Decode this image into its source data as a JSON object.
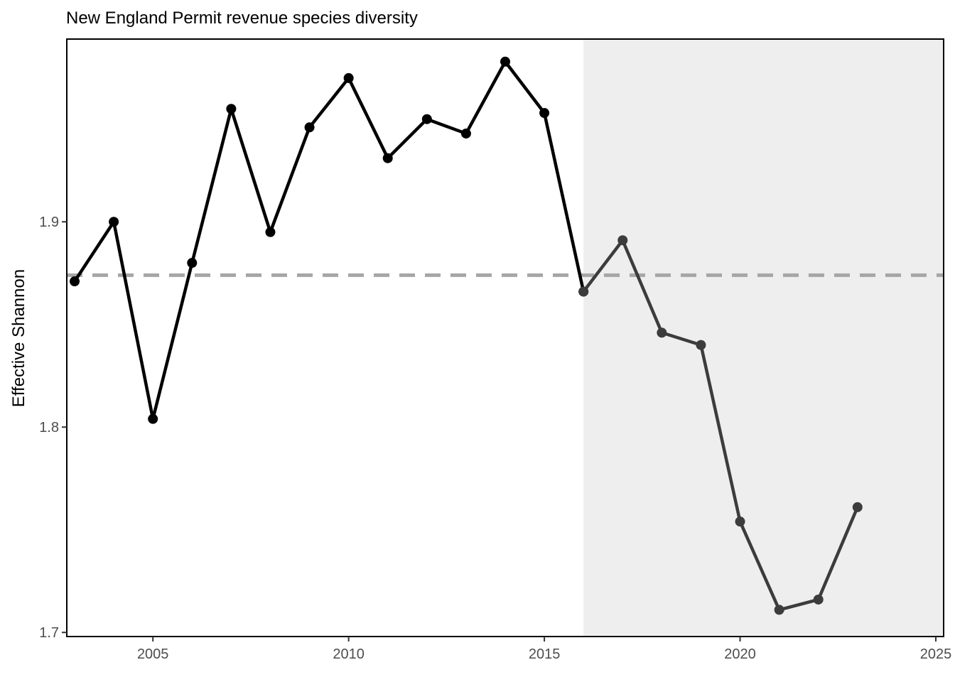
{
  "chart_data": {
    "type": "line",
    "title": "New England Permit revenue species diversity",
    "xlabel": "",
    "ylabel": "Effective Shannon",
    "xlim": [
      2002.8,
      2025.2
    ],
    "ylim": [
      1.698,
      1.989
    ],
    "x_ticks": [
      2005,
      2010,
      2015,
      2020,
      2025
    ],
    "y_ticks": [
      1.7,
      1.8,
      1.9
    ],
    "x_tick_labels": [
      "2005",
      "2010",
      "2015",
      "2020",
      "2025"
    ],
    "y_tick_labels": [
      "1.7",
      "1.8",
      "1.9"
    ],
    "grid": false,
    "reference_line": {
      "y": 1.874,
      "style": "dashed",
      "color": "#a6a6a6"
    },
    "shaded_region": {
      "x_start": 2016,
      "x_end": 2025.2,
      "color": "#eeeeee"
    },
    "series": [
      {
        "color": "#000000",
        "x": [
          2003,
          2004,
          2005,
          2006,
          2007,
          2008,
          2009,
          2010,
          2011,
          2012,
          2013,
          2014,
          2015,
          2016
        ],
        "values": [
          1.871,
          1.9,
          1.804,
          1.88,
          1.955,
          1.895,
          1.946,
          1.97,
          1.931,
          1.95,
          1.943,
          1.978,
          1.953,
          1.866
        ]
      },
      {
        "color": "#3c3c3c",
        "x": [
          2016,
          2017,
          2018,
          2019,
          2020,
          2021,
          2022,
          2023
        ],
        "values": [
          1.866,
          1.891,
          1.846,
          1.84,
          1.754,
          1.711,
          1.716,
          1.761
        ]
      }
    ]
  }
}
